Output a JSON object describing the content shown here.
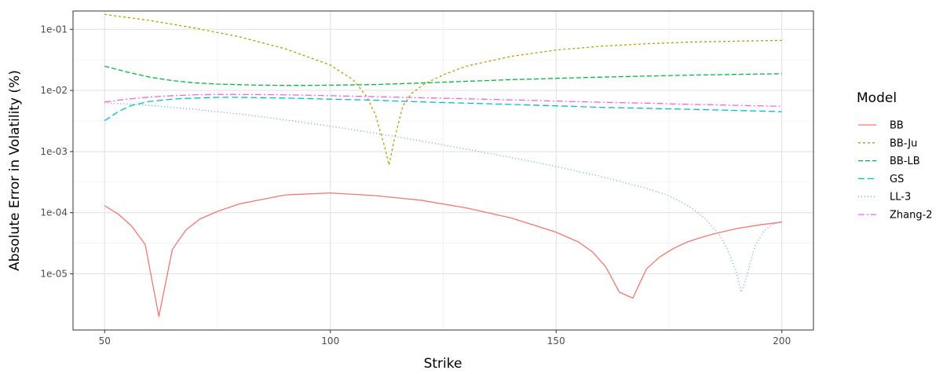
{
  "chart_data": {
    "type": "line",
    "xlabel": "Strike",
    "ylabel": "Absolute Error in Volatility (%)",
    "xlim": [
      43,
      207
    ],
    "ylim_log10": [
      -5.92,
      -0.7
    ],
    "y_scale": "log10",
    "x_ticks": [
      50,
      100,
      150,
      200
    ],
    "x_tick_labels": [
      "50",
      "100",
      "150",
      "200"
    ],
    "y_ticks": [
      0.1,
      0.01,
      0.001,
      0.0001,
      1e-05
    ],
    "y_tick_labels": [
      "1e-01",
      "1e-02",
      "1e-03",
      "1e-04",
      "1e-05"
    ],
    "grid": true,
    "legend": {
      "title": "Model",
      "position": "right"
    },
    "series": [
      {
        "name": "BB",
        "color": "#F8766D",
        "dash": "",
        "x": [
          50,
          53,
          56,
          59,
          62,
          65,
          68,
          71,
          75,
          80,
          90,
          100,
          110,
          120,
          130,
          140,
          150,
          155,
          158,
          161,
          164,
          167,
          170,
          173,
          176,
          179,
          182,
          185,
          190,
          195,
          200
        ],
        "y": [
          0.00013,
          9.5e-05,
          6e-05,
          3e-05,
          2e-06,
          2.5e-05,
          5.2e-05,
          7.8e-05,
          0.000105,
          0.00014,
          0.000195,
          0.00021,
          0.00019,
          0.00016,
          0.00012,
          8.2e-05,
          4.8e-05,
          3.3e-05,
          2.3e-05,
          1.3e-05,
          5e-06,
          4e-06,
          1.2e-05,
          1.9e-05,
          2.6e-05,
          3.3e-05,
          3.9e-05,
          4.5e-05,
          5.5e-05,
          6.3e-05,
          7e-05
        ]
      },
      {
        "name": "BB-Ju",
        "color": "#B79F00",
        "dash": "3,3",
        "x": [
          50,
          60,
          70,
          80,
          90,
          100,
          105,
          108,
          110,
          112,
          113,
          114,
          116,
          118,
          121,
          125,
          130,
          140,
          150,
          160,
          170,
          180,
          190,
          200
        ],
        "y": [
          0.175,
          0.14,
          0.105,
          0.075,
          0.048,
          0.026,
          0.015,
          0.008,
          0.004,
          0.0012,
          0.0006,
          0.0014,
          0.0055,
          0.009,
          0.013,
          0.018,
          0.025,
          0.036,
          0.046,
          0.053,
          0.058,
          0.062,
          0.064,
          0.066
        ]
      },
      {
        "name": "BB-LB",
        "color": "#00BA38",
        "dash": "6,3",
        "x": [
          50,
          55,
          60,
          65,
          70,
          75,
          80,
          85,
          90,
          95,
          100,
          110,
          120,
          130,
          140,
          150,
          160,
          170,
          180,
          190,
          200
        ],
        "y": [
          0.025,
          0.02,
          0.0165,
          0.0145,
          0.0133,
          0.0127,
          0.0124,
          0.0122,
          0.0121,
          0.0121,
          0.0122,
          0.0125,
          0.0132,
          0.0141,
          0.015,
          0.0158,
          0.0165,
          0.0172,
          0.0178,
          0.0183,
          0.0188
        ]
      },
      {
        "name": "GS",
        "color": "#00BFC4",
        "dash": "8,4",
        "x": [
          50,
          53,
          56,
          60,
          65,
          70,
          75,
          80,
          90,
          100,
          110,
          120,
          130,
          140,
          150,
          160,
          170,
          180,
          190,
          200
        ],
        "y": [
          0.0032,
          0.0045,
          0.0057,
          0.0066,
          0.0072,
          0.0075,
          0.0077,
          0.0077,
          0.0075,
          0.0072,
          0.0069,
          0.0065,
          0.0062,
          0.0059,
          0.0056,
          0.0053,
          0.0051,
          0.0049,
          0.0047,
          0.0045
        ]
      },
      {
        "name": "LL-3",
        "color": "#619CFF",
        "dash": "1,3",
        "x": [
          50,
          60,
          70,
          80,
          90,
          100,
          110,
          120,
          130,
          140,
          150,
          160,
          170,
          175,
          180,
          183,
          186,
          188,
          190,
          191,
          192,
          194,
          196,
          198,
          200
        ],
        "y": [
          0.0063,
          0.0057,
          0.0049,
          0.0041,
          0.0033,
          0.0026,
          0.002,
          0.0015,
          0.0011,
          0.0008,
          0.00057,
          0.00039,
          0.00025,
          0.00019,
          0.00012,
          8e-05,
          4.5e-05,
          2.5e-05,
          1e-05,
          5e-06,
          8e-06,
          2.8e-05,
          5e-05,
          6.5e-05,
          7.2e-05
        ]
      },
      {
        "name": "Zhang-2",
        "color": "#F564E3",
        "dash": "8,3,2,3",
        "x": [
          50,
          55,
          60,
          65,
          70,
          75,
          80,
          90,
          100,
          110,
          120,
          130,
          140,
          150,
          160,
          170,
          180,
          190,
          200
        ],
        "y": [
          0.0065,
          0.0072,
          0.0078,
          0.0082,
          0.0085,
          0.0086,
          0.0086,
          0.0085,
          0.0082,
          0.0079,
          0.0076,
          0.0073,
          0.007,
          0.0067,
          0.0064,
          0.0062,
          0.0059,
          0.0057,
          0.0055
        ]
      }
    ]
  }
}
